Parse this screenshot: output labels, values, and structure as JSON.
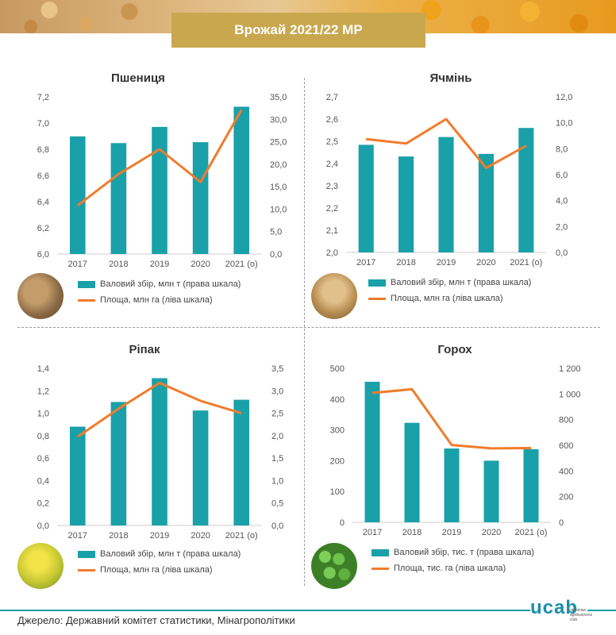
{
  "header": {
    "title": "Врожай 2021/22 МР"
  },
  "footer": {
    "source": "Джерело: Державний комітет статистики, Мінагрополітики",
    "logo": "ucab",
    "logo_sub": "ukrainian agribusiness club"
  },
  "colors": {
    "bar": "#1aa0a8",
    "line": "#f07c2c",
    "title_box": "#c9a74e"
  },
  "legend": {
    "wheat": {
      "bar": "Валовий збір, млн т (права шкала)",
      "line": "Площа, млн га (ліва шкала)"
    },
    "barley": {
      "bar": "Валовий збір, млн т (права шкала)",
      "line": "Площа, млн га (ліва шкала)"
    },
    "rapeseed": {
      "bar": "Валовий збір, млн т (права шкала)",
      "line": "Площа, млн га (ліва шкала)"
    },
    "peas": {
      "bar": "Валовий збір, тис. т (права шкала)",
      "line": "Площа, тис. га (ліва шкала)"
    }
  },
  "chart_data": [
    {
      "id": "wheat",
      "type": "bar",
      "title": "Пшениця",
      "categories": [
        "2017",
        "2018",
        "2019",
        "2020",
        "2021 (о)"
      ],
      "left_axis": {
        "ticks": [
          "6,0",
          "6,2",
          "6,4",
          "6,6",
          "6,8",
          "7,0",
          "7,2"
        ],
        "min": 6.0,
        "max": 7.2
      },
      "right_axis": {
        "ticks": [
          "0,0",
          "5,0",
          "10,0",
          "15,0",
          "20,0",
          "25,0",
          "30,0",
          "35,0"
        ],
        "min": 0,
        "max": 35
      },
      "series": [
        {
          "name": "Валовий збір, млн т (права шкала)",
          "type": "bar",
          "axis": "right",
          "values": [
            26.2,
            24.7,
            28.3,
            24.9,
            32.8
          ]
        },
        {
          "name": "Площа, млн га (ліва шкала)",
          "type": "line",
          "axis": "left",
          "values": [
            6.37,
            6.61,
            6.8,
            6.55,
            7.1
          ]
        }
      ]
    },
    {
      "id": "barley",
      "type": "bar",
      "title": "Ячмінь",
      "categories": [
        "2017",
        "2018",
        "2019",
        "2020",
        "2021 (о)"
      ],
      "left_axis": {
        "ticks": [
          "2,0",
          "2,1",
          "2,2",
          "2,3",
          "2,4",
          "2,5",
          "2,6",
          "2,7"
        ],
        "min": 2.0,
        "max": 2.7
      },
      "right_axis": {
        "ticks": [
          "0,0",
          "2,0",
          "4,0",
          "6,0",
          "8,0",
          "10,0",
          "12,0"
        ],
        "min": 0,
        "max": 12
      },
      "series": [
        {
          "name": "Валовий збір, млн т (права шкала)",
          "type": "bar",
          "axis": "right",
          "values": [
            8.3,
            7.4,
            8.9,
            7.6,
            9.6
          ]
        },
        {
          "name": "Площа, млн га (ліва шкала)",
          "type": "line",
          "axis": "left",
          "values": [
            2.51,
            2.49,
            2.6,
            2.38,
            2.48
          ]
        }
      ]
    },
    {
      "id": "rapeseed",
      "type": "bar",
      "title": "Ріпак",
      "categories": [
        "2017",
        "2018",
        "2019",
        "2020",
        "2021 (о)"
      ],
      "left_axis": {
        "ticks": [
          "0,0",
          "0,2",
          "0,4",
          "0,6",
          "0,8",
          "1,0",
          "1,2",
          "1,4"
        ],
        "min": 0,
        "max": 1.4
      },
      "right_axis": {
        "ticks": [
          "0,0",
          "0,5",
          "1,0",
          "1,5",
          "2,0",
          "2,5",
          "3,0",
          "3,5"
        ],
        "min": 0,
        "max": 3.5
      },
      "series": [
        {
          "name": "Валовий збір, млн т (права шкала)",
          "type": "bar",
          "axis": "right",
          "values": [
            2.2,
            2.75,
            3.28,
            2.56,
            2.8
          ]
        },
        {
          "name": "Площа, млн га (ліва шкала)",
          "type": "line",
          "axis": "left",
          "values": [
            0.79,
            1.04,
            1.27,
            1.11,
            1.0
          ]
        }
      ]
    },
    {
      "id": "peas",
      "type": "bar",
      "title": "Горох",
      "categories": [
        "2017",
        "2018",
        "2019",
        "2020",
        "2021 (о)"
      ],
      "left_axis": {
        "ticks": [
          "0",
          "100",
          "200",
          "300",
          "400",
          "500"
        ],
        "min": 0,
        "max": 500
      },
      "right_axis": {
        "ticks": [
          "0",
          "200",
          "400",
          "600",
          "800",
          "1 000",
          "1 200"
        ],
        "min": 0,
        "max": 1200
      },
      "series": [
        {
          "name": "Валовий збір, тис. т (права шкала)",
          "type": "bar",
          "axis": "right",
          "values": [
            1095,
            775,
            575,
            480,
            570
          ]
        },
        {
          "name": "Площа, тис. га (ліва шкала)",
          "type": "line",
          "axis": "left",
          "values": [
            420,
            432,
            251,
            240,
            241
          ]
        }
      ]
    }
  ]
}
